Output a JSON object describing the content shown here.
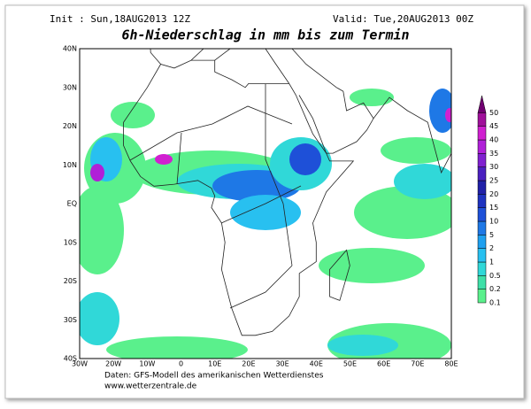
{
  "header": {
    "init": "Init : Sun,18AUG2013 12Z",
    "valid": "Valid: Tue,20AUG2013 00Z",
    "title": "6h-Niederschlag in mm bis zum Termin"
  },
  "map": {
    "lat_labels": [
      "40N",
      "30N",
      "20N",
      "10N",
      "EQ",
      "10S",
      "20S",
      "30S",
      "40S"
    ],
    "lon_labels": [
      "30W",
      "20W",
      "10W",
      "0",
      "10E",
      "20E",
      "30E",
      "40E",
      "50E",
      "60E",
      "70E",
      "80E"
    ]
  },
  "colorbar": {
    "levels": [
      {
        "label": "0.1",
        "color": "#5af08c"
      },
      {
        "label": "0.2",
        "color": "#3ee0a8"
      },
      {
        "label": "0.5",
        "color": "#30d8d8"
      },
      {
        "label": "1",
        "color": "#28c0f0"
      },
      {
        "label": "2",
        "color": "#1ea0f0"
      },
      {
        "label": "5",
        "color": "#1e78e6"
      },
      {
        "label": "10",
        "color": "#1e50d8"
      },
      {
        "label": "15",
        "color": "#1e32c0"
      },
      {
        "label": "20",
        "color": "#2020a8"
      },
      {
        "label": "25",
        "color": "#4a20c0"
      },
      {
        "label": "30",
        "color": "#8020d0"
      },
      {
        "label": "35",
        "color": "#b020d8"
      },
      {
        "label": "40",
        "color": "#d020d0"
      },
      {
        "label": "45",
        "color": "#a0109a"
      },
      {
        "label": "50",
        "color": "#700070"
      }
    ]
  },
  "footer": {
    "source": "Daten: GFS-Modell des amerikanischen Wetterdienstes",
    "url": "www.wetterzentrale.de"
  }
}
